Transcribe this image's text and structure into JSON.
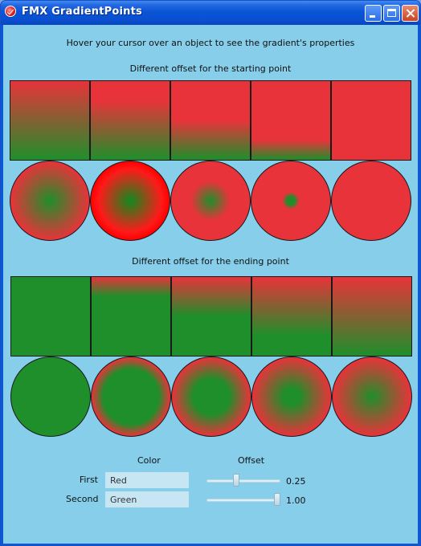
{
  "window": {
    "title": "FMX GradientPoints"
  },
  "intro_text": "Hover your cursor over an object to see the gradient's properties",
  "section_start": {
    "heading": "Different offset for the starting point"
  },
  "section_end": {
    "heading": "Different offset for the ending point"
  },
  "colors": {
    "red": "#e8333a",
    "green": "#1e8f2b",
    "background": "#87ceeb"
  },
  "controls": {
    "color_header": "Color",
    "offset_header": "Offset",
    "first": {
      "label": "First",
      "color": "Red",
      "offset_value": "0.25",
      "offset": 0.25
    },
    "second": {
      "label": "Second",
      "color": "Green",
      "offset_value": "1.00",
      "offset": 1.0
    }
  }
}
